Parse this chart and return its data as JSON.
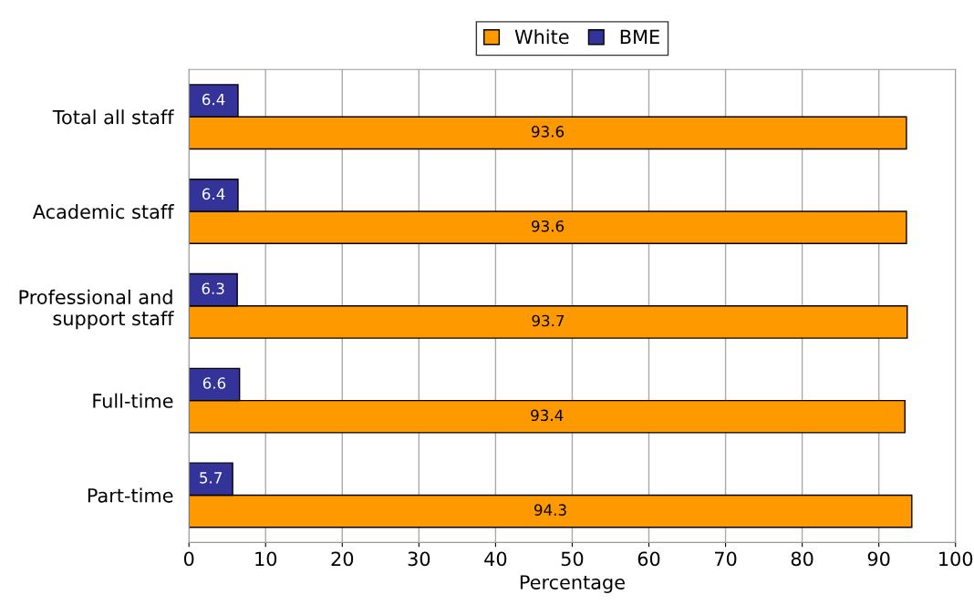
{
  "chart_data": {
    "type": "bar",
    "orientation": "horizontal",
    "xlabel": "Percentage",
    "categories": [
      "Total all staff",
      "Academic staff",
      "Professional and\nsupport staff",
      "Full-time",
      "Part-time"
    ],
    "series": [
      {
        "name": "White",
        "color": "#ff9900",
        "values": [
          93.6,
          93.6,
          93.7,
          93.4,
          94.3
        ]
      },
      {
        "name": "BME",
        "color": "#333399",
        "values": [
          6.4,
          6.4,
          6.3,
          6.6,
          5.7
        ]
      }
    ],
    "xlim": [
      0,
      100
    ],
    "xticks": [
      0,
      10,
      20,
      30,
      40,
      50,
      60,
      70,
      80,
      90,
      100
    ],
    "grid": "x",
    "legend": "top",
    "data_labels": true
  }
}
